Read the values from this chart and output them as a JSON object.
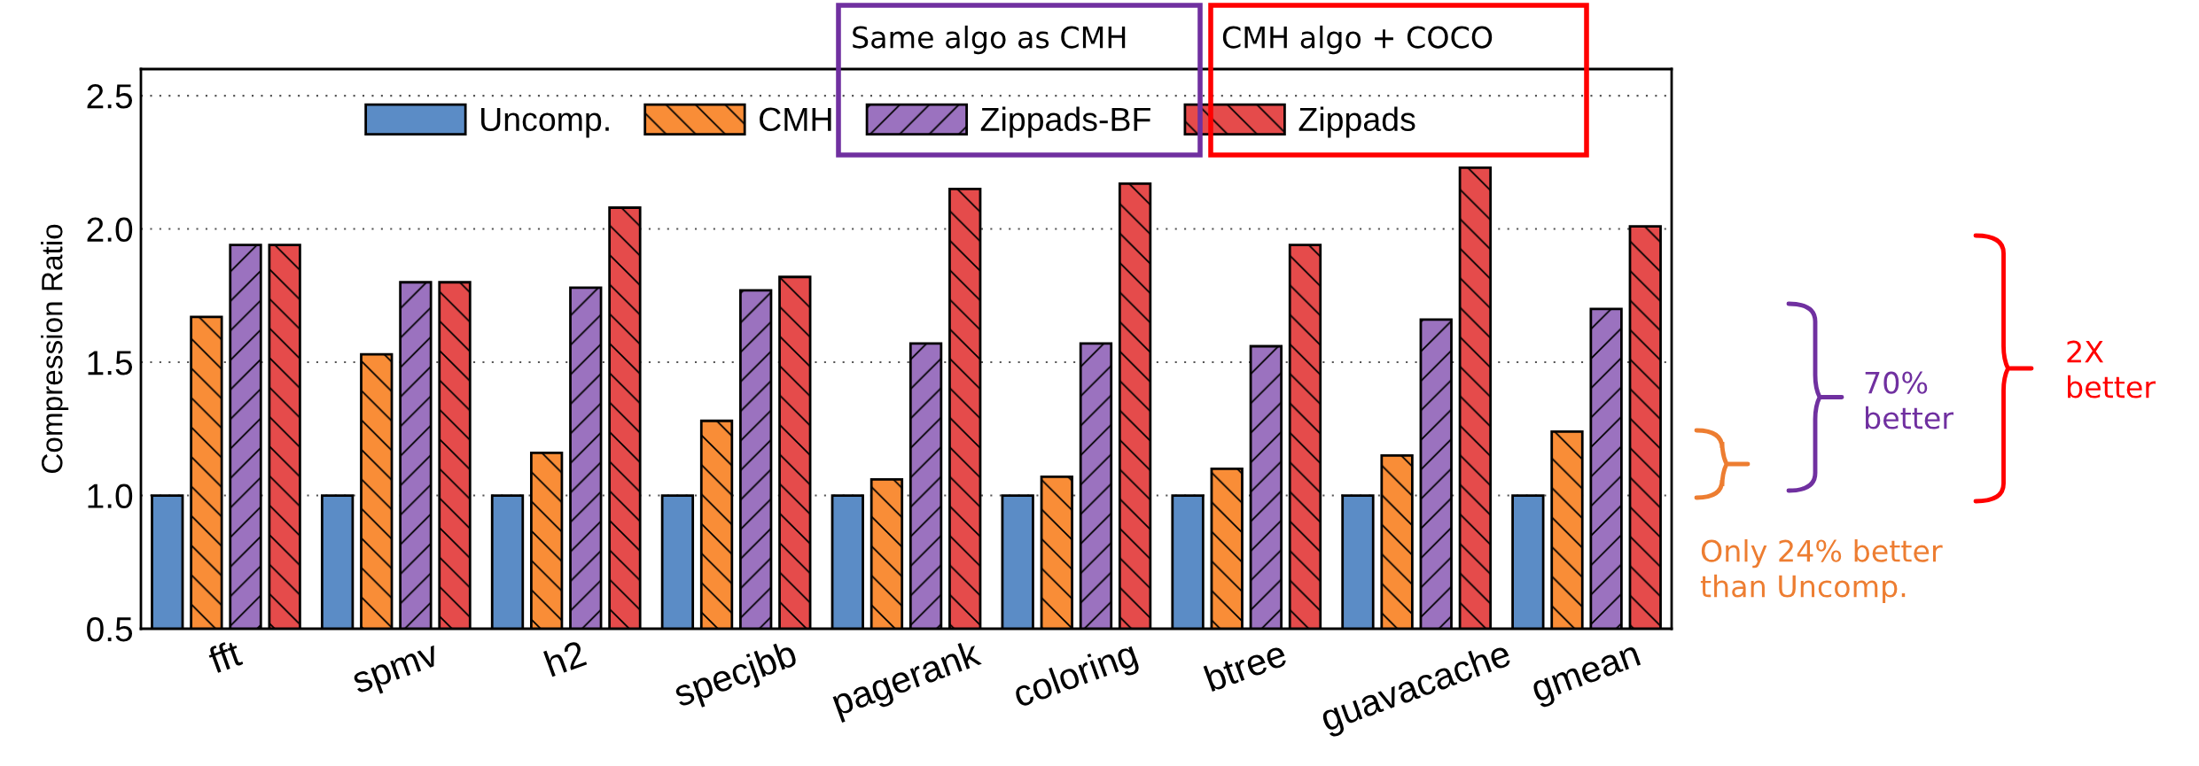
{
  "chart_data": {
    "type": "bar",
    "ylabel": "Compression Ratio",
    "categories": [
      "fft",
      "spmv",
      "h2",
      "specjbb",
      "pagerank",
      "coloring",
      "btree",
      "guavacache",
      "gmean"
    ],
    "series": [
      {
        "name": "Uncomp.",
        "color": "#5b8cc6",
        "values": [
          1.0,
          1.0,
          1.0,
          1.0,
          1.0,
          1.0,
          1.0,
          1.0,
          1.0
        ]
      },
      {
        "name": "CMH",
        "color": "#f98d37",
        "values": [
          1.67,
          1.53,
          1.16,
          1.28,
          1.06,
          1.07,
          1.1,
          1.15,
          1.24
        ]
      },
      {
        "name": "Zippads-BF",
        "color": "#9b72bf",
        "values": [
          1.94,
          1.8,
          1.78,
          1.77,
          1.57,
          1.57,
          1.56,
          1.66,
          1.7
        ]
      },
      {
        "name": "Zippads",
        "color": "#e54b4b",
        "values": [
          1.94,
          1.8,
          2.08,
          1.82,
          2.15,
          2.17,
          1.94,
          2.23,
          2.01
        ]
      }
    ],
    "ylim": [
      0.5,
      2.6
    ],
    "yticks": [
      {
        "value": 0.5,
        "label": "0.5"
      },
      {
        "value": 1.0,
        "label": "1.0"
      },
      {
        "value": 1.5,
        "label": "1.5"
      },
      {
        "value": 2.0,
        "label": "2.0"
      },
      {
        "value": 2.5,
        "label": "2.5"
      }
    ],
    "grid": "y",
    "legend": "top",
    "annotations": [
      "Same algo as CMH",
      "CMH algo + COCO",
      "Only 24% better than Uncomp.",
      "70% better",
      "2X better"
    ]
  }
}
